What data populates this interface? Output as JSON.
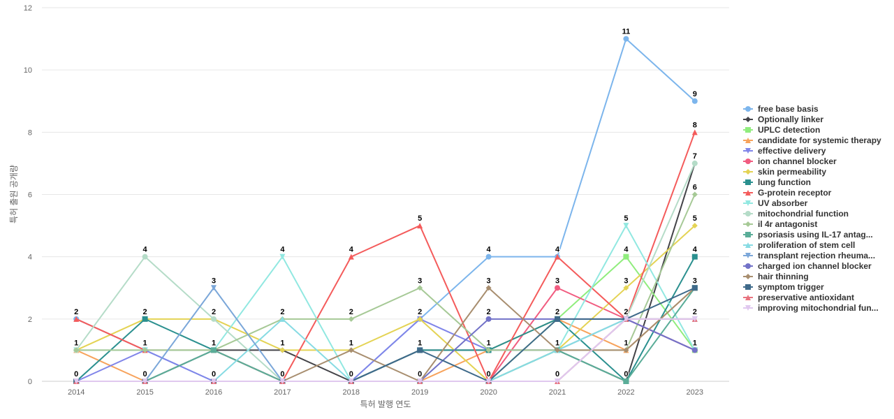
{
  "chart_data": {
    "type": "line",
    "title": "",
    "xlabel": "특허 발행 연도",
    "ylabel": "특허 출원 공개량",
    "categories": [
      "2014",
      "2015",
      "2016",
      "2017",
      "2018",
      "2019",
      "2020",
      "2021",
      "2022",
      "2023"
    ],
    "ylim": [
      0,
      12
    ],
    "yticks": [
      0,
      2,
      4,
      6,
      8,
      10,
      12
    ],
    "grid": true,
    "legend_position": "right",
    "series": [
      {
        "name": "free base basis",
        "color": "#7cb5ec",
        "marker": "circle",
        "values": [
          2,
          1,
          0,
          0,
          0,
          2,
          4,
          4,
          11,
          9
        ]
      },
      {
        "name": "Optionally linker",
        "color": "#434348",
        "marker": "diamond",
        "values": [
          0,
          0,
          1,
          1,
          0,
          1,
          1,
          1,
          0,
          7
        ]
      },
      {
        "name": "UPLC detection",
        "color": "#90ed7d",
        "marker": "square",
        "values": [
          0,
          0,
          0,
          0,
          0,
          0,
          0,
          2,
          4,
          1
        ]
      },
      {
        "name": "candidate for systemic therapy",
        "color": "#f7a35c",
        "marker": "triangle",
        "values": [
          1,
          0,
          0,
          0,
          0,
          0,
          1,
          2,
          1,
          3
        ]
      },
      {
        "name": "effective delivery",
        "color": "#8085e9",
        "marker": "triangle-down",
        "values": [
          0,
          1,
          0,
          0,
          0,
          2,
          1,
          1,
          2,
          1
        ]
      },
      {
        "name": "ion channel blocker",
        "color": "#f15c80",
        "marker": "circle",
        "values": [
          0,
          0,
          0,
          0,
          0,
          0,
          0,
          3,
          2,
          1
        ]
      },
      {
        "name": "skin permeability",
        "color": "#e4d354",
        "marker": "diamond",
        "values": [
          1,
          2,
          2,
          1,
          1,
          2,
          0,
          1,
          3,
          5
        ]
      },
      {
        "name": "lung function",
        "color": "#2b908f",
        "marker": "square",
        "values": [
          0,
          2,
          1,
          0,
          0,
          1,
          1,
          2,
          0,
          4
        ]
      },
      {
        "name": "G-protein receptor",
        "color": "#f45b5b",
        "marker": "triangle",
        "values": [
          2,
          1,
          1,
          0,
          4,
          5,
          0,
          4,
          2,
          8
        ]
      },
      {
        "name": "UV absorber",
        "color": "#91e8e1",
        "marker": "triangle-down",
        "values": [
          1,
          1,
          1,
          4,
          0,
          0,
          0,
          1,
          5,
          1
        ]
      },
      {
        "name": "mitochondrial function",
        "color": "#b5dcc8",
        "marker": "circle",
        "values": [
          1,
          4,
          2,
          0,
          0,
          0,
          0,
          1,
          2,
          7
        ]
      },
      {
        "name": "il 4r antagonist",
        "color": "#a6c996",
        "marker": "diamond",
        "values": [
          1,
          1,
          1,
          2,
          2,
          3,
          1,
          1,
          1,
          6
        ]
      },
      {
        "name": "psoriasis using IL-17 antag...",
        "color": "#5aad98",
        "marker": "square",
        "values": [
          0,
          0,
          1,
          0,
          0,
          0,
          0,
          1,
          0,
          3
        ]
      },
      {
        "name": "proliferation of stem cell",
        "color": "#87dbe3",
        "marker": "triangle",
        "values": [
          0,
          0,
          0,
          2,
          0,
          0,
          0,
          1,
          2,
          2
        ]
      },
      {
        "name": "transplant rejection rheuma...",
        "color": "#7ba7d9",
        "marker": "triangle-down",
        "values": [
          0,
          0,
          3,
          0,
          0,
          0,
          0,
          0,
          2,
          2
        ]
      },
      {
        "name": "charged ion channel blocker",
        "color": "#7272c8",
        "marker": "circle",
        "values": [
          0,
          0,
          0,
          0,
          0,
          0,
          2,
          2,
          2,
          1
        ]
      },
      {
        "name": "hair thinning",
        "color": "#a88e6f",
        "marker": "diamond",
        "values": [
          0,
          0,
          0,
          0,
          1,
          0,
          3,
          1,
          1,
          3
        ]
      },
      {
        "name": "symptom trigger",
        "color": "#3f6a8a",
        "marker": "square",
        "values": [
          0,
          0,
          0,
          0,
          0,
          1,
          0,
          2,
          2,
          3
        ]
      },
      {
        "name": "preservative antioxidant",
        "color": "#e8727e",
        "marker": "triangle",
        "values": [
          0,
          0,
          0,
          0,
          0,
          0,
          0,
          0,
          2,
          2
        ]
      },
      {
        "name": "improving mitochondrial fun...",
        "color": "#e0c8ef",
        "marker": "triangle-down",
        "values": [
          0,
          0,
          0,
          0,
          0,
          0,
          0,
          0,
          2,
          2
        ]
      }
    ],
    "data_labels": [
      {
        "category": "2014",
        "values": [
          2,
          1,
          0
        ]
      },
      {
        "category": "2015",
        "values": [
          4,
          2,
          1,
          0
        ]
      },
      {
        "category": "2016",
        "values": [
          3,
          2,
          1,
          0
        ]
      },
      {
        "category": "2017",
        "values": [
          4,
          2,
          1,
          0
        ]
      },
      {
        "category": "2018",
        "values": [
          4,
          2,
          1,
          0
        ]
      },
      {
        "category": "2019",
        "values": [
          5,
          3,
          2,
          1,
          0
        ]
      },
      {
        "category": "2020",
        "values": [
          4,
          3,
          2,
          1,
          0
        ]
      },
      {
        "category": "2021",
        "values": [
          4,
          3,
          2,
          1,
          0
        ]
      },
      {
        "category": "2022",
        "values": [
          11,
          5,
          4,
          3,
          2,
          1,
          0
        ]
      },
      {
        "category": "2023",
        "values": [
          9,
          8,
          7,
          6,
          5,
          4,
          3,
          2,
          1
        ]
      }
    ]
  }
}
